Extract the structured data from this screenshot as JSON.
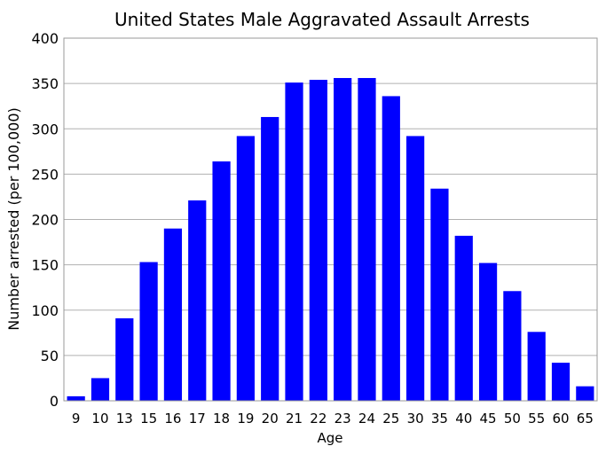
{
  "chart_data": {
    "type": "bar",
    "title": "United States Male Aggravated Assault Arrests",
    "xlabel": "Age",
    "ylabel": "Number arrested (per 100,000)",
    "categories": [
      "9",
      "10",
      "13",
      "15",
      "16",
      "17",
      "18",
      "19",
      "20",
      "21",
      "22",
      "23",
      "24",
      "25",
      "30",
      "35",
      "40",
      "45",
      "50",
      "55",
      "60",
      "65"
    ],
    "values": [
      5,
      25,
      91,
      153,
      190,
      221,
      264,
      292,
      313,
      351,
      354,
      356,
      356,
      336,
      292,
      234,
      182,
      152,
      121,
      76,
      42,
      16
    ],
    "ylim": [
      0,
      400
    ],
    "yticks": [
      "0",
      "50",
      "100",
      "150",
      "200",
      "250",
      "300",
      "350",
      "400"
    ],
    "grid": true,
    "bar_color": "#0000ff",
    "grid_color": "#b0b0b0"
  }
}
